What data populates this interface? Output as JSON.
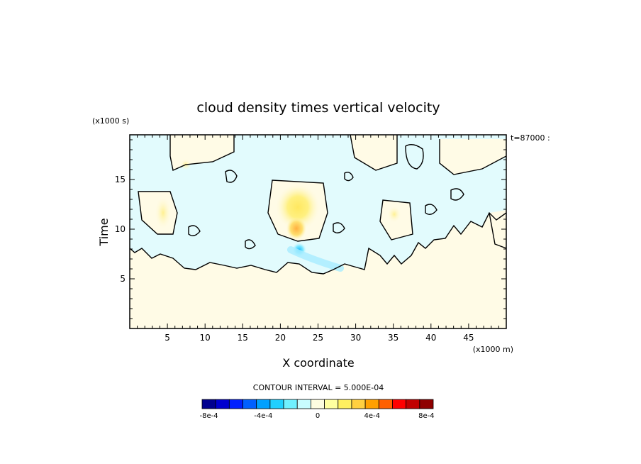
{
  "chart_data": {
    "type": "heatmap",
    "title": "cloud density times vertical velocity",
    "xlabel": "X coordinate",
    "ylabel": "Time",
    "x_units": "(x1000 m)",
    "y_units": "(x1000 s)",
    "time_stamp": "t=87000 :",
    "xlim": [
      0,
      50
    ],
    "ylim": [
      0,
      19.5
    ],
    "x_ticks": [
      5,
      10,
      15,
      20,
      25,
      30,
      35,
      40,
      45
    ],
    "y_ticks": [
      5,
      10,
      15
    ],
    "contour_interval_label": "CONTOUR INTERVAL = 5.000E-04",
    "colorbar": {
      "colors": [
        "#00008f",
        "#0000cf",
        "#0020ff",
        "#0060ff",
        "#00a0ff",
        "#20d0ff",
        "#70f0ff",
        "#c8fcff",
        "#fcfce0",
        "#ffffa0",
        "#fff060",
        "#ffd040",
        "#ffa000",
        "#ff6000",
        "#ff0000",
        "#c00000",
        "#8f0000"
      ],
      "tick_labels": [
        "-8e-4",
        "-4e-4",
        "0",
        "4e-4",
        "8e-4"
      ],
      "tick_values": [
        -0.0008,
        -0.0004,
        0,
        0.0004,
        0.0008
      ]
    },
    "background_color": "#fffbe6",
    "cloud_color": "#e2fbfd",
    "features": [
      {
        "name": "lower-region",
        "value": 5e-05,
        "x_range": [
          0,
          50
        ],
        "y_range": [
          0,
          5.5
        ]
      },
      {
        "name": "positive-max",
        "value": 0.0004,
        "x": 22,
        "y": 10.3
      },
      {
        "name": "positive-core",
        "value": 0.00035,
        "x": 21.5,
        "y": 12.5
      },
      {
        "name": "negative-min",
        "value": -0.0003,
        "x": 22,
        "y": 8.2
      }
    ]
  }
}
